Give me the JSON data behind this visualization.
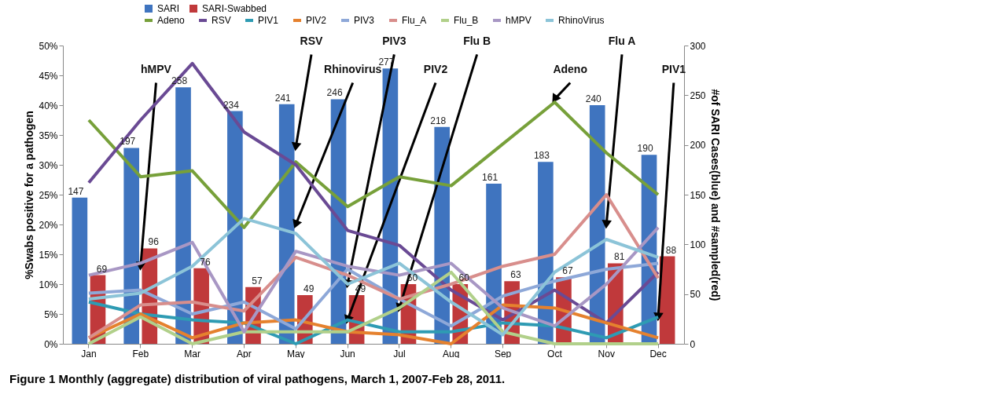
{
  "chart_data": {
    "type": "line",
    "categories": [
      "Jan",
      "Feb",
      "Mar",
      "Apr",
      "May",
      "Jun",
      "Jul",
      "Aug",
      "Sep",
      "Oct",
      "Nov",
      "Dec"
    ],
    "ylabel": "%Swabs positive for a pathogen",
    "y2label": "#of SARI Cases(blue) and #sampled(red)",
    "ylim": [
      0,
      50
    ],
    "yticks": [
      {
        "value": 0,
        "label": "0%"
      },
      {
        "value": 5,
        "label": "5%"
      },
      {
        "value": 10,
        "label": "10%"
      },
      {
        "value": 15,
        "label": "15%"
      },
      {
        "value": 20,
        "label": "20%"
      },
      {
        "value": 25,
        "label": "25%"
      },
      {
        "value": 30,
        "label": "30%"
      },
      {
        "value": 35,
        "label": "35%"
      },
      {
        "value": 40,
        "label": "40%"
      },
      {
        "value": 45,
        "label": "45%"
      },
      {
        "value": 50,
        "label": "50%"
      }
    ],
    "y2lim": [
      0,
      300
    ],
    "y2ticks": [
      0,
      50,
      100,
      150,
      200,
      250,
      300
    ],
    "legend": "top",
    "grid": false,
    "series": [
      {
        "name": "SARI",
        "type": "bar",
        "axis": "y2",
        "data_labels": true,
        "color": "#3f74bf",
        "values": [
          147,
          197,
          258,
          234,
          241,
          246,
          277,
          218,
          161,
          183,
          240,
          190
        ]
      },
      {
        "name": "SARI-Swabbed",
        "type": "bar",
        "axis": "y2",
        "data_labels": true,
        "color": "#c0393b",
        "values": [
          69,
          96,
          76,
          57,
          49,
          49,
          60,
          60,
          63,
          67,
          81,
          88
        ]
      },
      {
        "name": "Adeno",
        "color": "#77a03a",
        "values": [
          37.5,
          28,
          29,
          19.5,
          30.5,
          23,
          28,
          26.5,
          33.5,
          40.5,
          32,
          25
        ]
      },
      {
        "name": "RSV",
        "color": "#6a4a94",
        "values": [
          27,
          37.5,
          47,
          35.5,
          30,
          19,
          16.5,
          9,
          4,
          9,
          3.5,
          12
        ]
      },
      {
        "name": "PIV1",
        "color": "#2e9bb3",
        "values": [
          7,
          5,
          4,
          3.5,
          0,
          4,
          2,
          2,
          3.5,
          3,
          1,
          4.5
        ]
      },
      {
        "name": "PIV2",
        "color": "#e5812e",
        "values": [
          1,
          5,
          1,
          3.5,
          4,
          2,
          1.5,
          0,
          6.5,
          6,
          3.5,
          1
        ]
      },
      {
        "name": "PIV3",
        "color": "#8ea8d8",
        "values": [
          8.5,
          9,
          5,
          7,
          2.5,
          12.5,
          7.5,
          3,
          8,
          10.5,
          12.5,
          13.5
        ]
      },
      {
        "name": "Flu_A",
        "color": "#d88e8c",
        "values": [
          1,
          6.5,
          7,
          5.5,
          14.5,
          11.5,
          7.5,
          10,
          13,
          15,
          25,
          11
        ]
      },
      {
        "name": "Flu_B",
        "color": "#b1d08a",
        "values": [
          0,
          4.5,
          0,
          2,
          2,
          2,
          6,
          12,
          2,
          0,
          0,
          0
        ]
      },
      {
        "name": "hMPV",
        "color": "#a897c4",
        "values": [
          11.5,
          13.5,
          17,
          2,
          15.5,
          13,
          11.5,
          13.5,
          6,
          3,
          10,
          19.5
        ]
      },
      {
        "name": "RhinoVirus",
        "color": "#8cc4d8",
        "values": [
          7.5,
          8.5,
          13,
          21,
          18.5,
          10,
          13.5,
          7,
          1.5,
          12,
          17.5,
          14.5
        ]
      }
    ],
    "annotations": [
      {
        "text": "hMPV",
        "x": "Feb",
        "y": 13
      },
      {
        "text": "RSV",
        "x": "May",
        "y": 33
      },
      {
        "text": "Rhinovirus",
        "x": "May",
        "y": 20
      },
      {
        "text": "PIV3",
        "x": "Jun",
        "y": 10
      },
      {
        "text": "PIV2",
        "x": "Jun",
        "y": 4
      },
      {
        "text": "Flu B",
        "x": "Jul",
        "y": 6
      },
      {
        "text": "Adeno",
        "x": "Oct",
        "y": 41
      },
      {
        "text": "Flu A",
        "x": "Nov",
        "y": 20
      },
      {
        "text": "PIV1",
        "x": "Dec",
        "y": 4.5
      },
      "Figure 1 Monthly (aggregate) distribution of viral pathogens, March 1, 2007-Feb 28, 2011."
    ]
  }
}
